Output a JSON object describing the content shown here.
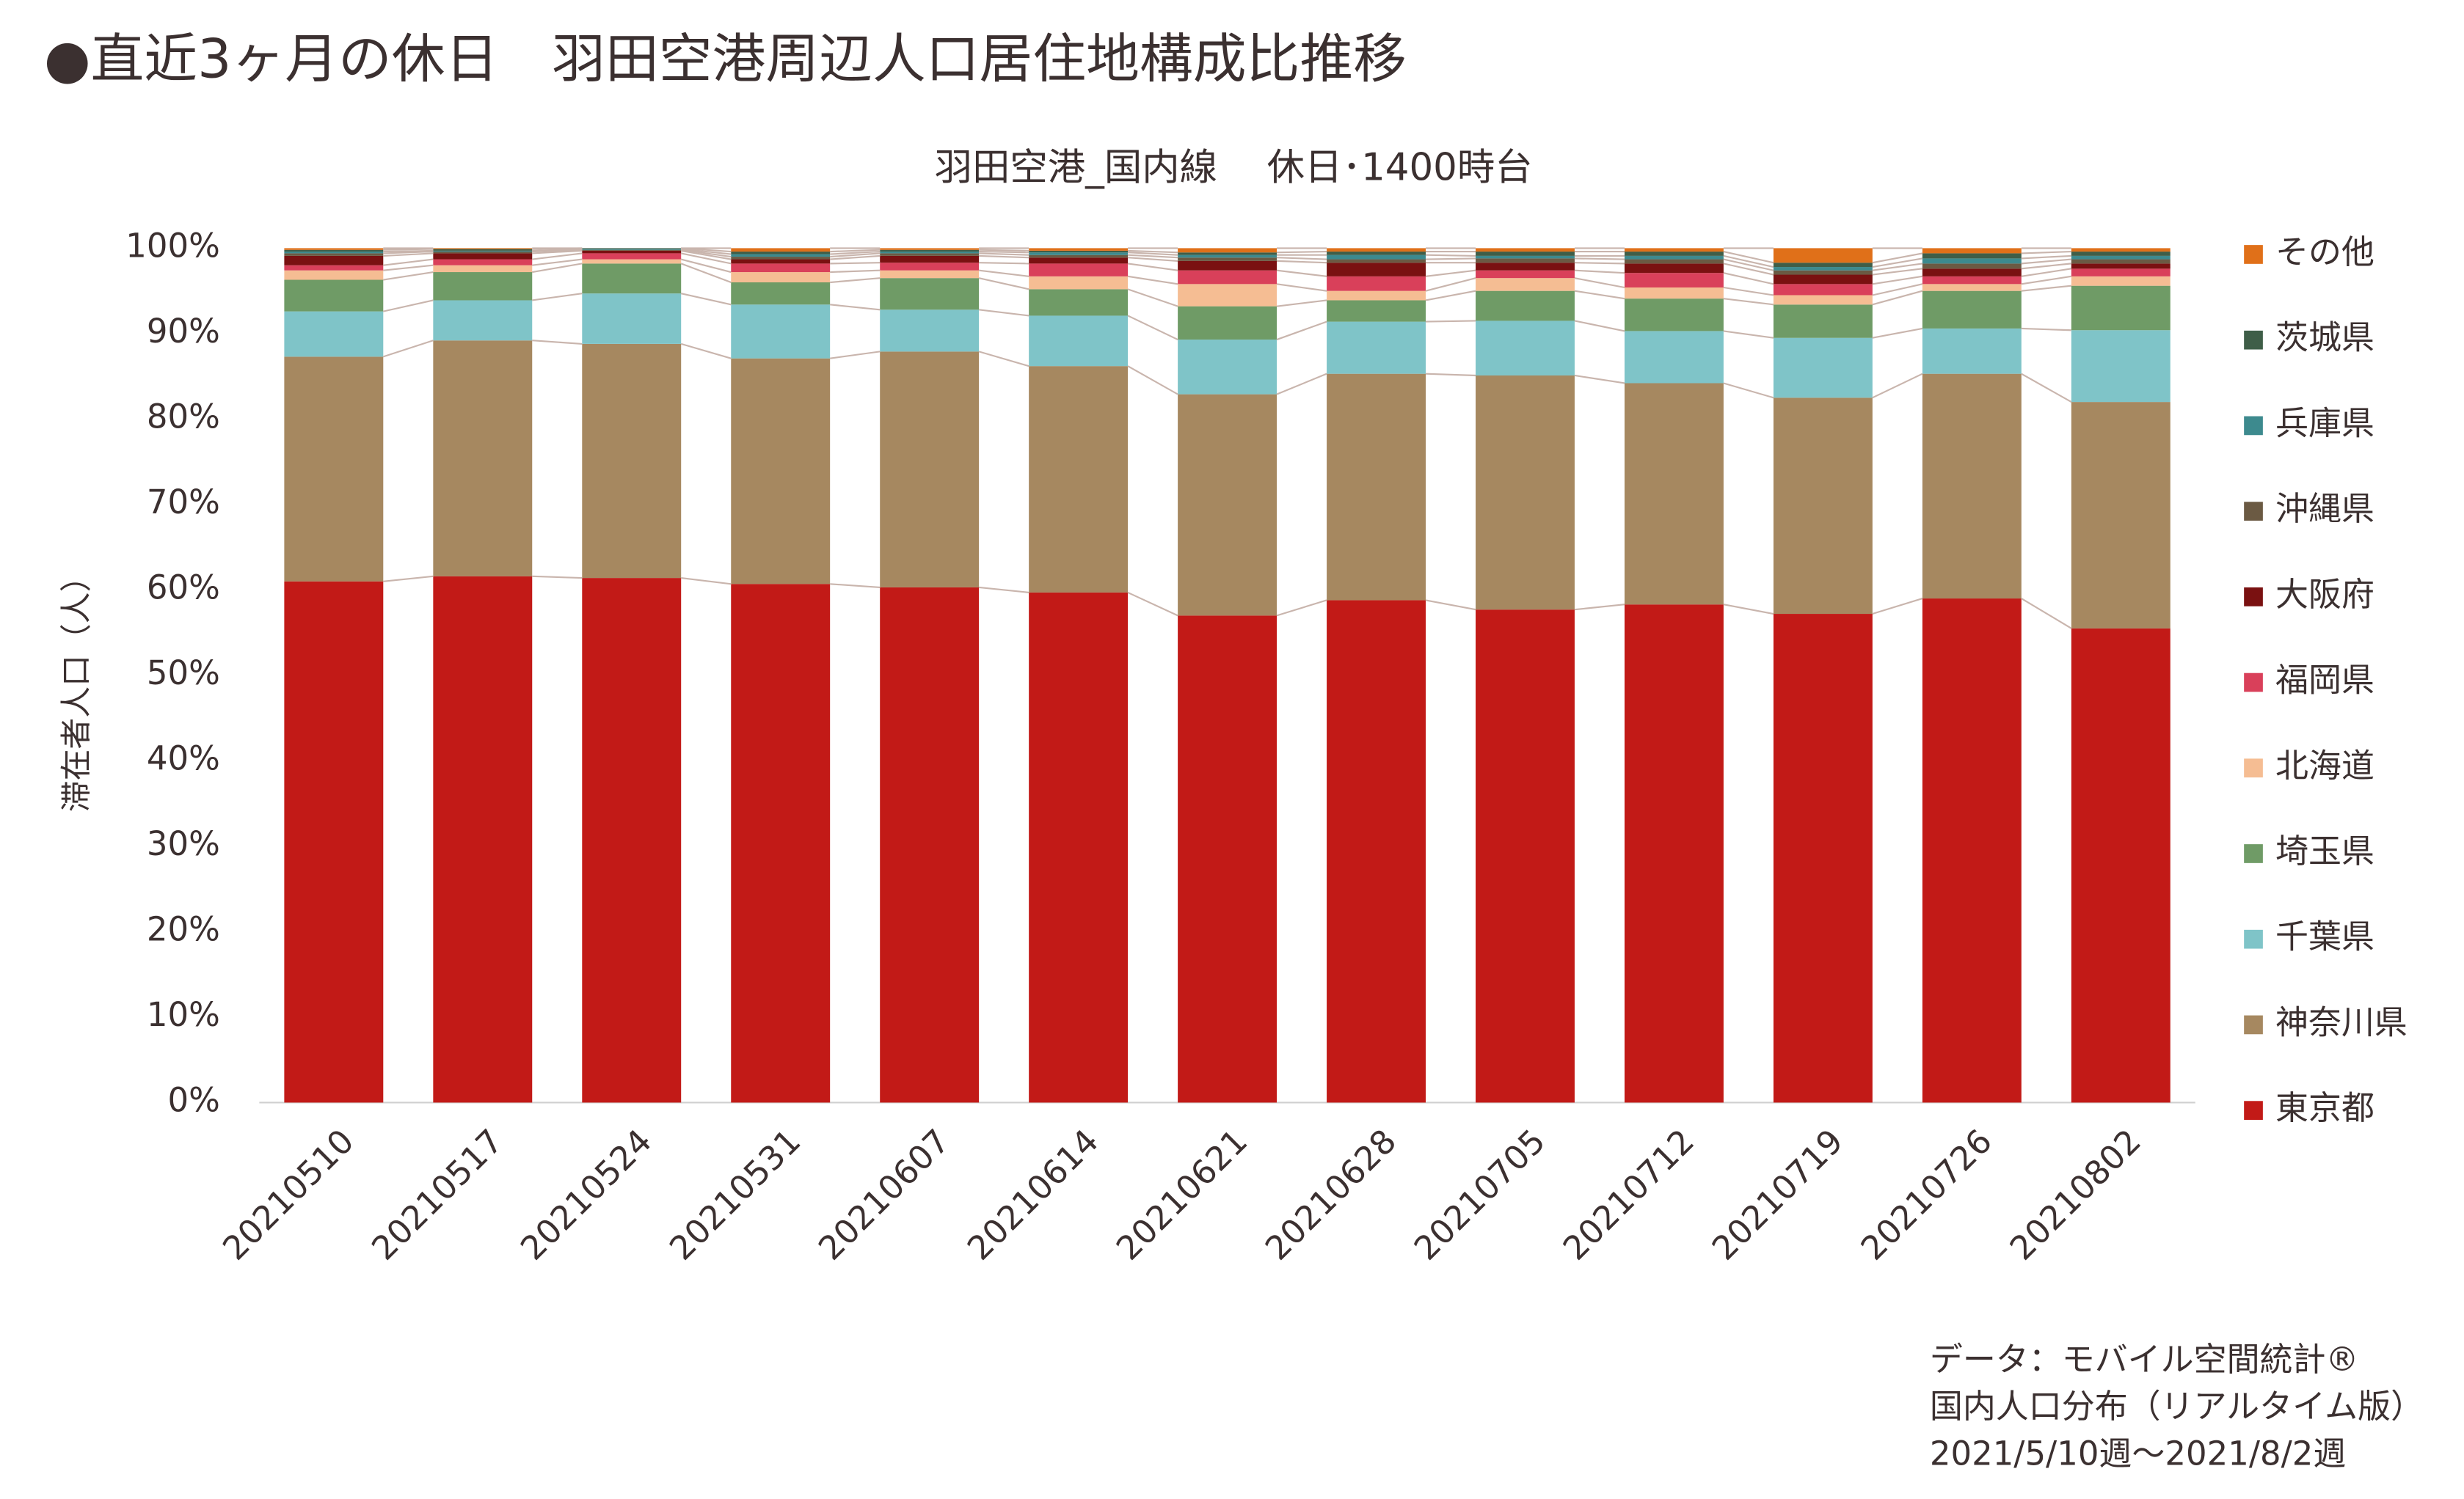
{
  "chart_data": {
    "type": "stacked_bar",
    "title": "●直近3ヶ月の休日　羽田空港周辺人口居住地構成比推移",
    "subtitle": "羽田空港_国内線　 休日･1400時台",
    "y_label": "滞在者人口（人）",
    "source": [
      "データ：モバイル空間統計®",
      "国内人口分布（リアルタイム版）",
      "2021/5/10週～2021/8/2週"
    ],
    "categories": [
      "20210510",
      "20210517",
      "20210524",
      "20210531",
      "20210607",
      "20210614",
      "20210621",
      "20210628",
      "20210705",
      "20210712",
      "20210719",
      "20210726",
      "20210802"
    ],
    "series": [
      {
        "name": "東京都",
        "color": "#c21a17",
        "values": [
          61.0,
          61.6,
          61.4,
          60.7,
          60.3,
          59.7,
          57.0,
          58.8,
          57.7,
          58.3,
          57.2,
          59.0,
          55.5
        ]
      },
      {
        "name": "神奈川県",
        "color": "#a68860",
        "values": [
          26.3,
          27.6,
          27.4,
          26.4,
          27.6,
          26.5,
          25.9,
          26.5,
          27.4,
          25.9,
          25.3,
          26.3,
          26.5
        ]
      },
      {
        "name": "千葉県",
        "color": "#7fc4c8",
        "values": [
          5.3,
          4.7,
          5.9,
          6.3,
          4.9,
          5.9,
          6.4,
          6.1,
          6.4,
          6.1,
          7.0,
          5.3,
          8.4
        ]
      },
      {
        "name": "埼玉県",
        "color": "#6f9b66",
        "values": [
          3.7,
          3.3,
          3.5,
          2.6,
          3.7,
          3.1,
          3.9,
          2.5,
          3.5,
          3.8,
          3.9,
          4.4,
          5.2
        ]
      },
      {
        "name": "北海道",
        "color": "#f5bd93",
        "values": [
          1.1,
          0.8,
          0.5,
          1.2,
          0.9,
          1.5,
          2.6,
          1.1,
          1.5,
          1.3,
          1.1,
          0.8,
          1.1
        ]
      },
      {
        "name": "福岡県",
        "color": "#d9405a",
        "values": [
          0.6,
          0.7,
          0.7,
          1.0,
          0.9,
          1.5,
          1.6,
          1.7,
          0.9,
          1.7,
          1.3,
          0.9,
          0.9
        ]
      },
      {
        "name": "大阪府",
        "color": "#7a1111",
        "values": [
          1.1,
          0.7,
          0.3,
          0.5,
          0.8,
          0.7,
          1.1,
          1.6,
          0.9,
          1.1,
          1.1,
          0.9,
          0.6
        ]
      },
      {
        "name": "沖縄県",
        "color": "#6b5a43",
        "values": [
          0.3,
          0.2,
          0.1,
          0.3,
          0.3,
          0.3,
          0.4,
          0.4,
          0.5,
          0.5,
          0.5,
          0.6,
          0.5
        ]
      },
      {
        "name": "兵庫県",
        "color": "#3d8a8e",
        "values": [
          0.2,
          0.1,
          0.1,
          0.3,
          0.2,
          0.3,
          0.3,
          0.5,
          0.3,
          0.4,
          0.4,
          0.6,
          0.4
        ]
      },
      {
        "name": "茨城県",
        "color": "#3f5e48",
        "values": [
          0.2,
          0.2,
          0.1,
          0.3,
          0.2,
          0.2,
          0.3,
          0.4,
          0.5,
          0.5,
          0.5,
          0.6,
          0.5
        ]
      },
      {
        "name": "その他",
        "color": "#e07019",
        "values": [
          0.2,
          0.1,
          0,
          0.4,
          0.2,
          0.3,
          0.5,
          0.4,
          0.4,
          0.4,
          1.7,
          0.6,
          0.4
        ]
      }
    ],
    "ylim": [
      0,
      100
    ],
    "yticks": [
      {
        "value": 0,
        "label": "0%"
      },
      {
        "value": 10,
        "label": "10%"
      },
      {
        "value": 20,
        "label": "20%"
      },
      {
        "value": 30,
        "label": "30%"
      },
      {
        "value": 40,
        "label": "40%"
      },
      {
        "value": 50,
        "label": "50%"
      },
      {
        "value": 60,
        "label": "60%"
      },
      {
        "value": 70,
        "label": "70%"
      },
      {
        "value": 80,
        "label": "80%"
      },
      {
        "value": 90,
        "label": "90%"
      },
      {
        "value": 100,
        "label": "100%"
      }
    ],
    "legend": "right"
  }
}
